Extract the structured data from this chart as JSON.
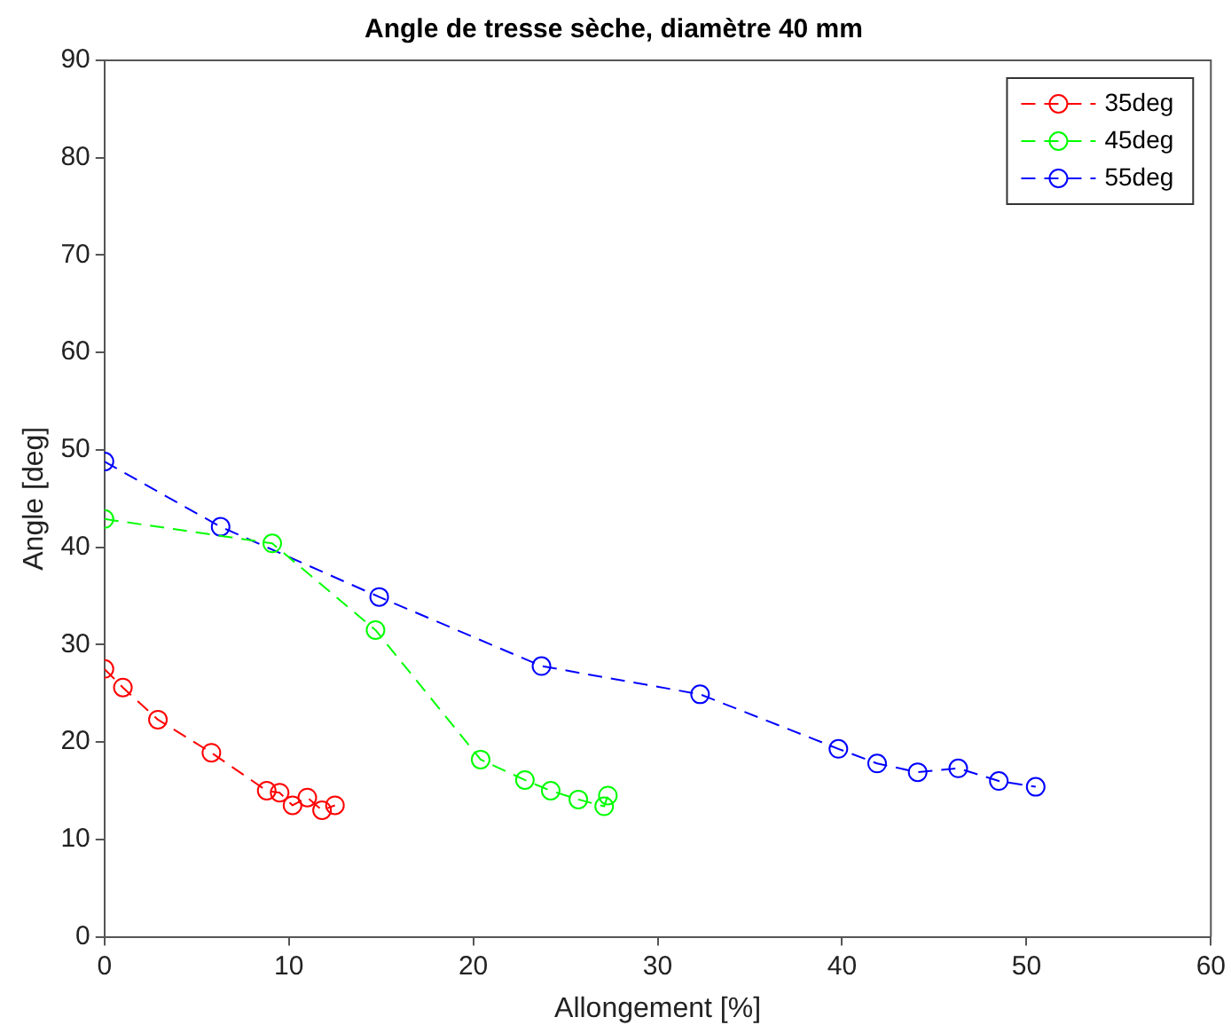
{
  "chart_data": {
    "type": "line",
    "title": "Angle de tresse sèche, diamètre 40 mm",
    "xlabel": "Allongement [%]",
    "ylabel": "Angle [deg]",
    "xlim": [
      0,
      60
    ],
    "xticks": [
      0,
      10,
      20,
      30,
      40,
      50,
      60
    ],
    "ylim": [
      0,
      90
    ],
    "yticks": [
      0,
      10,
      20,
      30,
      40,
      50,
      60,
      70,
      80,
      90
    ],
    "grid": false,
    "legend": "top right",
    "marker": "circle",
    "line_style": "dashed",
    "series": [
      {
        "name": "35deg",
        "color": "#ff0000",
        "x": [
          0,
          1.0,
          2.9,
          5.8,
          8.8,
          9.5,
          10.2,
          11.0,
          11.8,
          12.5
        ],
        "values": [
          27.5,
          25.6,
          22.3,
          18.9,
          15.0,
          14.8,
          13.5,
          14.3,
          13.0,
          13.5
        ]
      },
      {
        "name": "45deg",
        "color": "#00ff00",
        "x": [
          0,
          9.1,
          14.7,
          20.4,
          22.8,
          24.2,
          25.7,
          27.1,
          27.3
        ],
        "values": [
          42.9,
          40.4,
          31.5,
          18.2,
          16.1,
          15.0,
          14.1,
          13.4,
          14.5
        ]
      },
      {
        "name": "55deg",
        "color": "#0000ff",
        "x": [
          0,
          6.3,
          14.9,
          23.7,
          32.3,
          39.8,
          41.9,
          44.1,
          46.3,
          48.5,
          50.5
        ],
        "values": [
          48.8,
          42.1,
          34.9,
          27.8,
          24.9,
          19.3,
          17.8,
          16.9,
          17.3,
          16.0,
          15.4
        ]
      }
    ]
  }
}
